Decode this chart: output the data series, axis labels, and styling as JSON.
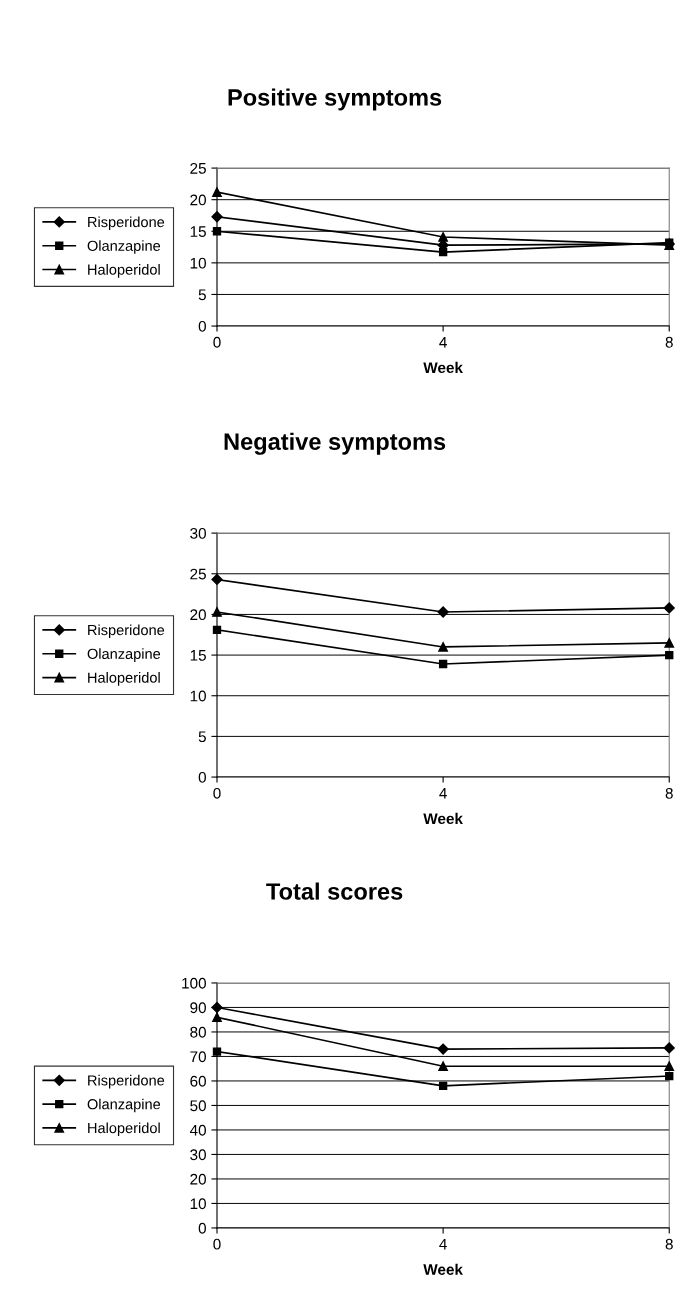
{
  "chart_data": [
    {
      "type": "line",
      "title": "Positive symptoms",
      "xlabel": "Week",
      "x": [
        0,
        4,
        8
      ],
      "xlim": [
        0,
        8
      ],
      "xticks": [
        0,
        4,
        8
      ],
      "ylim": [
        0,
        25
      ],
      "yticks": [
        0,
        5,
        10,
        15,
        20,
        25
      ],
      "grid": "y",
      "legend": "left",
      "line_style": "solid",
      "series": [
        {
          "name": "Risperidone",
          "color": "#000000",
          "marker": "diamond",
          "values": [
            17.3,
            12.8,
            13.0
          ]
        },
        {
          "name": "Olanzapine",
          "color": "#000000",
          "marker": "square",
          "values": [
            15.0,
            11.7,
            13.2
          ]
        },
        {
          "name": "Haloperidol",
          "color": "#000000",
          "marker": "triangle",
          "values": [
            21.2,
            14.1,
            12.8
          ]
        }
      ]
    },
    {
      "type": "line",
      "title": "Negative symptoms",
      "xlabel": "Week",
      "x": [
        0,
        4,
        8
      ],
      "xlim": [
        0,
        8
      ],
      "xticks": [
        0,
        4,
        8
      ],
      "ylim": [
        0,
        30
      ],
      "yticks": [
        0,
        5,
        10,
        15,
        20,
        25,
        30
      ],
      "grid": "y",
      "legend": "left",
      "line_style": "solid",
      "series": [
        {
          "name": "Risperidone",
          "color": "#000000",
          "marker": "diamond",
          "values": [
            24.3,
            20.3,
            20.8
          ]
        },
        {
          "name": "Olanzapine",
          "color": "#000000",
          "marker": "square",
          "values": [
            18.1,
            13.9,
            15.0
          ]
        },
        {
          "name": "Haloperidol",
          "color": "#000000",
          "marker": "triangle",
          "values": [
            20.3,
            16.0,
            16.5
          ]
        }
      ]
    },
    {
      "type": "line",
      "title": "Total scores",
      "xlabel": "Week",
      "x": [
        0,
        4,
        8
      ],
      "xlim": [
        0,
        8
      ],
      "xticks": [
        0,
        4,
        8
      ],
      "ylim": [
        0,
        100
      ],
      "yticks": [
        0,
        10,
        20,
        30,
        40,
        50,
        60,
        70,
        80,
        90,
        100
      ],
      "grid": "y",
      "legend": "left",
      "line_style": "solid",
      "series": [
        {
          "name": "Risperidone",
          "color": "#000000",
          "marker": "diamond",
          "values": [
            90,
            73,
            73.5
          ]
        },
        {
          "name": "Olanzapine",
          "color": "#000000",
          "marker": "square",
          "values": [
            72,
            58,
            62
          ]
        },
        {
          "name": "Haloperidol",
          "color": "#000000",
          "marker": "triangle",
          "values": [
            86,
            66,
            66
          ]
        }
      ]
    }
  ]
}
